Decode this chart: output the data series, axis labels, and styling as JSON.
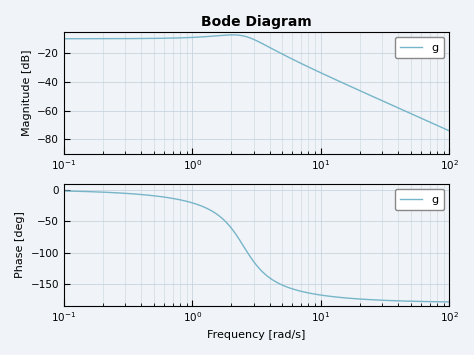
{
  "title": "Bode Diagram",
  "freq_min": 0.1,
  "freq_max": 100,
  "mag_ylim": [
    -90,
    -5
  ],
  "mag_yticks": [
    -80,
    -60,
    -40,
    -20
  ],
  "phase_ylim": [
    -185,
    10
  ],
  "phase_yticks": [
    -150,
    -100,
    -50,
    0
  ],
  "mag_ylabel": "Magnitude [dB]",
  "phase_ylabel": "Phase [deg]",
  "xlabel": "Frequency [rad/s]",
  "legend_label": "g",
  "line_color": "#77b5c8",
  "bg_color": "#f0f4f8",
  "grid_color": "#c8d4dd",
  "legend_font_size": 8,
  "title_font_size": 10,
  "label_font_size": 8,
  "tick_font_size": 7.5,
  "wn": 2.5,
  "zeta": 0.4,
  "gain_db": -10.0
}
